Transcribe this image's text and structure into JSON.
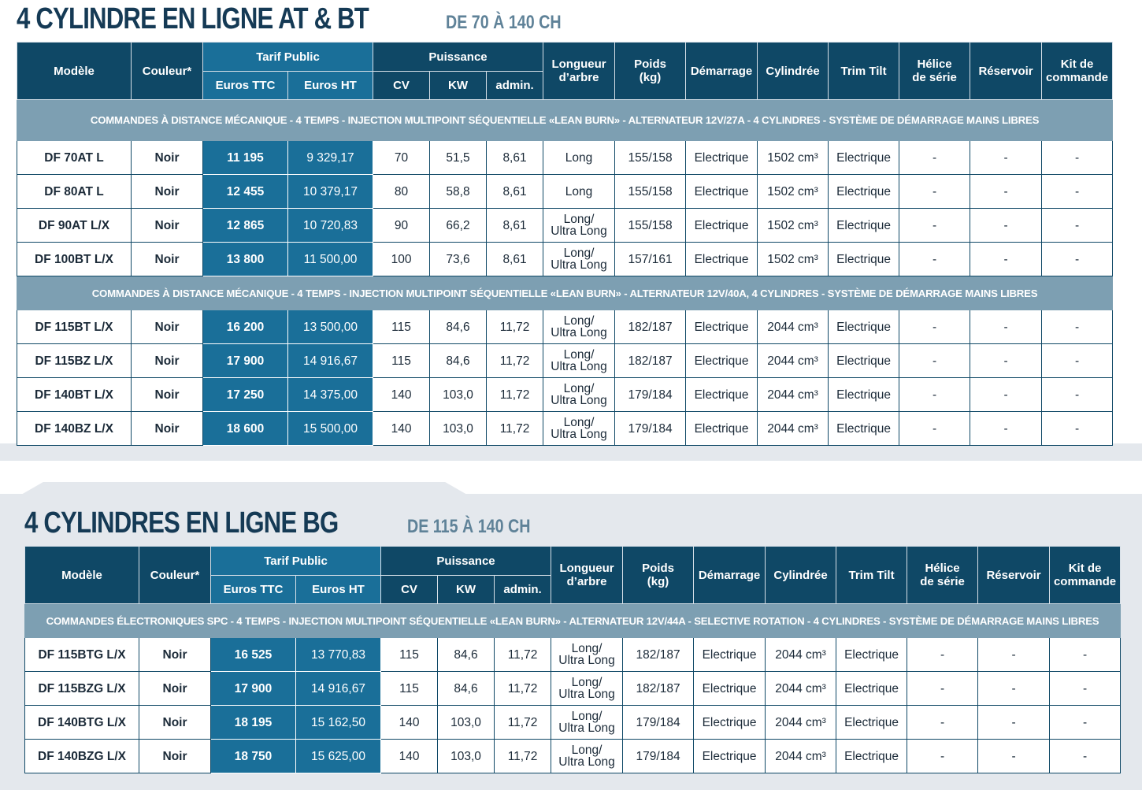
{
  "sections": [
    {
      "title": "4 CYLINDRE EN LIGNE AT & BT",
      "subtitle": "DE 70 À 140 CH",
      "columns": {
        "model": "Modèle",
        "color": "Couleur*",
        "price": "Tarif Public",
        "ttc": "Euros TTC",
        "ht": "Euros HT",
        "power": "Puissance",
        "cv": "CV",
        "kw": "KW",
        "admin": "admin.",
        "shaft": "Longueur\nd’arbre",
        "weight": "Poids\n(kg)",
        "start": "Démarrage",
        "displacement": "Cylindrée",
        "trim": "Trim Tilt",
        "propeller": "Hélice\nde série",
        "tank": "Réservoir",
        "kit": "Kit de\ncommande"
      },
      "groups": [
        {
          "banner": "COMMANDES À DISTANCE MÉCANIQUE - 4 TEMPS - INJECTION MULTIPOINT SÉQUENTIELLE  «LEAN BURN» - ALTERNATEUR 12V/27A - 4 CYLINDRES - SYSTÈME DE DÉMARRAGE MAINS LIBRES",
          "rows": [
            [
              "DF 70AT L",
              "Noir",
              "11 195",
              "9 329,17",
              "70",
              "51,5",
              "8,61",
              "Long",
              "155/158",
              "Electrique",
              "1502 cm³",
              "Electrique",
              "-",
              "-",
              "-"
            ],
            [
              "DF 80AT L",
              "Noir",
              "12 455",
              "10 379,17",
              "80",
              "58,8",
              "8,61",
              "Long",
              "155/158",
              "Electrique",
              "1502 cm³",
              "Electrique",
              "-",
              "-",
              "-"
            ],
            [
              "DF 90AT L/X",
              "Noir",
              "12 865",
              "10 720,83",
              "90",
              "66,2",
              "8,61",
              "Long/\nUltra Long",
              "155/158",
              "Electrique",
              "1502 cm³",
              "Electrique",
              "-",
              "-",
              "-"
            ],
            [
              "DF 100BT L/X",
              "Noir",
              "13 800",
              "11 500,00",
              "100",
              "73,6",
              "8,61",
              "Long/\nUltra Long",
              "157/161",
              "Electrique",
              "1502 cm³",
              "Electrique",
              "-",
              "-",
              "-"
            ]
          ]
        },
        {
          "banner": "COMMANDES À DISTANCE MÉCANIQUE - 4 TEMPS - INJECTION MULTIPOINT SÉQUENTIELLE «LEAN BURN» - ALTERNATEUR 12V/40A,  4 CYLINDRES - SYSTÈME DE DÉMARRAGE MAINS LIBRES",
          "rows": [
            [
              "DF 115BT L/X",
              "Noir",
              "16 200",
              "13 500,00",
              "115",
              "84,6",
              "11,72",
              "Long/\nUltra Long",
              "182/187",
              "Electrique",
              "2044 cm³",
              "Electrique",
              "-",
              "-",
              "-"
            ],
            [
              "DF 115BZ L/X",
              "Noir",
              "17 900",
              "14 916,67",
              "115",
              "84,6",
              "11,72",
              "Long/\nUltra Long",
              "182/187",
              "Electrique",
              "2044 cm³",
              "Electrique",
              "-",
              "-",
              "-"
            ],
            [
              "DF 140BT L/X",
              "Noir",
              "17 250",
              "14 375,00",
              "140",
              "103,0",
              "11,72",
              "Long/\nUltra Long",
              "179/184",
              "Electrique",
              "2044 cm³",
              "Electrique",
              "-",
              "-",
              "-"
            ],
            [
              "DF 140BZ L/X",
              "Noir",
              "18 600",
              "15 500,00",
              "140",
              "103,0",
              "11,72",
              "Long/\nUltra Long",
              "179/184",
              "Electrique",
              "2044 cm³",
              "Electrique",
              "-",
              "-",
              "-"
            ]
          ]
        }
      ]
    },
    {
      "title": "4 CYLINDRES EN LIGNE BG",
      "subtitle": "DE 115 À 140 CH",
      "columns": {
        "model": "Modèle",
        "color": "Couleur*",
        "price": "Tarif Public",
        "ttc": "Euros TTC",
        "ht": "Euros HT",
        "power": "Puissance",
        "cv": "CV",
        "kw": "KW",
        "admin": "admin.",
        "shaft": "Longueur\nd’arbre",
        "weight": "Poids\n(kg)",
        "start": "Démarrage",
        "displacement": "Cylindrée",
        "trim": "Trim Tilt",
        "propeller": "Hélice\nde série",
        "tank": "Réservoir",
        "kit": "Kit de\ncommande"
      },
      "groups": [
        {
          "banner": "COMMANDES ÉLECTRONIQUES SPC - 4 TEMPS - INJECTION MULTIPOINT SÉQUENTIELLE «LEAN BURN» - ALTERNATEUR 12V/44A - SELECTIVE ROTATION - 4 CYLINDRES - SYSTÈME DE DÉMARRAGE MAINS LIBRES",
          "rows": [
            [
              "DF 115BTG L/X",
              "Noir",
              "16 525",
              "13 770,83",
              "115",
              "84,6",
              "11,72",
              "Long/\nUltra Long",
              "182/187",
              "Electrique",
              "2044 cm³",
              "Electrique",
              "-",
              "-",
              "-"
            ],
            [
              "DF 115BZG L/X",
              "Noir",
              "17 900",
              "14 916,67",
              "115",
              "84,6",
              "11,72",
              "Long/\nUltra Long",
              "182/187",
              "Electrique",
              "2044 cm³",
              "Electrique",
              "-",
              "-",
              "-"
            ],
            [
              "DF 140BTG L/X",
              "Noir",
              "18 195",
              "15 162,50",
              "140",
              "103,0",
              "11,72",
              "Long/\nUltra Long",
              "179/184",
              "Electrique",
              "2044 cm³",
              "Electrique",
              "-",
              "-",
              "-"
            ],
            [
              "DF 140BZG L/X",
              "Noir",
              "18 750",
              "15 625,00",
              "140",
              "103,0",
              "11,72",
              "Long/\nUltra Long",
              "179/184",
              "Electrique",
              "2044 cm³",
              "Electrique",
              "-",
              "-",
              "-"
            ]
          ]
        }
      ]
    }
  ]
}
